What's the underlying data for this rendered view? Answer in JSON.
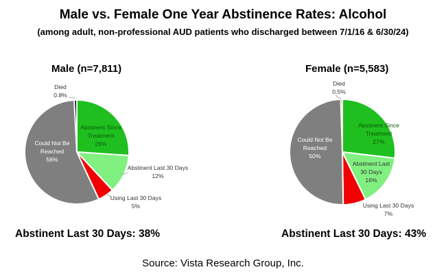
{
  "title": "Male vs. Female One Year Abstinence Rates:  Alcohol",
  "subtitle": "(among adult, non-professional AUD patients who discharged between 7/1/16 & 6/30/24)",
  "source": "Source:  Vista Research Group, Inc.",
  "colors": {
    "abstinent_since_treatment": "#1fbf1f",
    "abstinent_last_30": "#80f080",
    "using_last_30": "#f00000",
    "could_not_be_reached": "#7f7f7f",
    "died": "#000000"
  },
  "chart_data": [
    {
      "type": "pie",
      "title": "Male (n=7,811)",
      "summary": "Abstinent Last 30 Days:  38%",
      "slices": [
        {
          "key": "abstinent_since_treatment",
          "label": [
            "Abstinent Since",
            "Treatment",
            "26%"
          ],
          "value": 26
        },
        {
          "key": "abstinent_last_30",
          "label": [
            "Abstinent Last 30 Days",
            "12%"
          ],
          "value": 12
        },
        {
          "key": "using_last_30",
          "label": [
            "Using Last 30 Days",
            "5%"
          ],
          "value": 5
        },
        {
          "key": "could_not_be_reached",
          "label": [
            "Could Not Be",
            "Reached",
            "56%"
          ],
          "value": 56
        },
        {
          "key": "died",
          "label": [
            "Died",
            "0.8%"
          ],
          "value": 0.8
        }
      ]
    },
    {
      "type": "pie",
      "title": "Female (n=5,583)",
      "summary": "Abstinent Last 30 Days:  43%",
      "slices": [
        {
          "key": "abstinent_since_treatment",
          "label": [
            "Abstinent Since",
            "Treatment",
            "27%"
          ],
          "value": 27
        },
        {
          "key": "abstinent_last_30",
          "label": [
            "Abstinent Last",
            "30 Days",
            "16%"
          ],
          "value": 16
        },
        {
          "key": "using_last_30",
          "label": [
            "Using Last 30 Days",
            "7%"
          ],
          "value": 7
        },
        {
          "key": "could_not_be_reached",
          "label": [
            "Could Not Be",
            "Reached",
            "50%"
          ],
          "value": 50
        },
        {
          "key": "died",
          "label": [
            "Died",
            "0.5%"
          ],
          "value": 0.5
        }
      ]
    }
  ]
}
